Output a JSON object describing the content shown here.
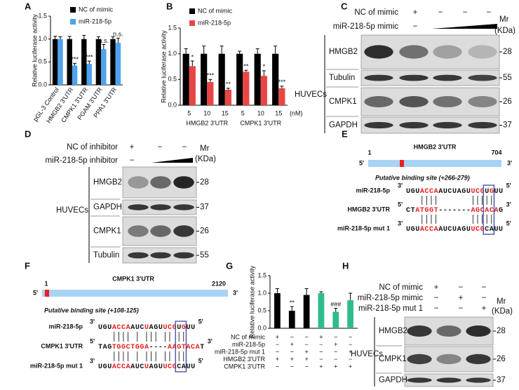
{
  "chart_data": [
    {
      "label": "A",
      "type": "bar",
      "y_label": "Relative luciferase activity",
      "categories": [
        "pGL-3 Control",
        "HMGB2 3'UTR",
        "CMPK1 3'UTR",
        "PGAM 3'UTR",
        "PPA1 3'UTR"
      ],
      "series": [
        {
          "name": "NC of mimic",
          "color": "#000000",
          "values": [
            1,
            1,
            1,
            1,
            1
          ],
          "errors": [
            0.06,
            0.06,
            0.08,
            0.05,
            0.05
          ]
        },
        {
          "name": "miR-218-5p",
          "color": "#4ea3ee",
          "values": [
            1,
            0.42,
            0.46,
            0.78,
            0.92
          ],
          "errors": [
            0.05,
            0.05,
            0.06,
            0.1,
            0.1
          ]
        }
      ],
      "annotations": [
        null,
        "***",
        "***",
        "n.s.",
        "n.s."
      ],
      "ylim": [
        0,
        1.5
      ],
      "yticks": [
        {
          "value": 0,
          "label": "0.0"
        },
        0.5,
        {
          "value": 1,
          "label": "1.0"
        },
        1.5
      ]
    },
    {
      "label": "B",
      "type": "bar",
      "y_label": "Relative luciferase activity",
      "categories": [
        "5",
        "10",
        "15",
        "5",
        "10",
        "15"
      ],
      "x_unit": "(nM)",
      "groups": [
        "HMGB2 3'UTR",
        "CMPK1 3'UTR"
      ],
      "series": [
        {
          "name": "NC of mimic",
          "color": "#000000",
          "values": [
            1,
            1,
            1,
            1,
            1,
            1
          ],
          "errors": [
            0.1,
            0.15,
            0.15,
            0.05,
            0.1,
            0.15
          ]
        },
        {
          "name": "miR-218-5p",
          "color": "#e84646",
          "values": [
            0.76,
            0.45,
            0.3,
            0.65,
            0.57,
            0.33
          ],
          "errors": [
            0.1,
            0.05,
            0.03,
            0.03,
            0.1,
            0.04
          ]
        }
      ],
      "annotations": [
        "*",
        "***",
        "**",
        "**",
        "*",
        "***"
      ],
      "ylim": [
        0,
        1.5
      ],
      "yticks": [
        {
          "value": 0,
          "label": "0.0"
        },
        0.5,
        {
          "value": 1,
          "label": "1.0"
        },
        1.5
      ]
    },
    {
      "label": "G",
      "type": "bar",
      "y_label": "Relative luciferase activity",
      "values": [
        1,
        0.5,
        0.95,
        1,
        0.47,
        0.8
      ],
      "errors": [
        0.13,
        0.12,
        0.18,
        0.04,
        0.1,
        0.2
      ],
      "colors": [
        "#000000",
        "#000000",
        "#000000",
        "#2ebd8a",
        "#2ebd8a",
        "#2ebd8a"
      ],
      "annotations": [
        null,
        "**",
        null,
        null,
        "###",
        null
      ],
      "conditions": [
        {
          "name": "NC of mimic",
          "signs": [
            "+",
            "−",
            "−",
            "+",
            "−",
            "−"
          ]
        },
        {
          "name": "miR-218-5p",
          "signs": [
            "−",
            "+",
            "−",
            "−",
            "+",
            "−"
          ]
        },
        {
          "name": "miR-218-5p mut 1",
          "signs": [
            "−",
            "−",
            "+",
            "−",
            "−",
            "+"
          ]
        },
        {
          "name": "HMGB2 3'UTR",
          "signs": [
            "+",
            "+",
            "+",
            "−",
            "−",
            "−"
          ]
        },
        {
          "name": "CMPK1 3'UTR",
          "signs": [
            "−",
            "−",
            "−",
            "+",
            "+",
            "+"
          ]
        }
      ],
      "ylim": [
        0,
        1.5
      ],
      "yticks": [
        {
          "value": 0,
          "label": "0.0"
        },
        0.5,
        {
          "value": 1,
          "label": "1.0"
        },
        1.5
      ]
    }
  ],
  "blots": [
    {
      "label": "C",
      "cell": "HUVECs",
      "mr_header": [
        "Mr",
        "(KDa)"
      ],
      "treatments": [
        {
          "name": "NC of mimic",
          "signs": [
            "+",
            "−",
            "−",
            "−"
          ]
        },
        {
          "name": "miR-218-5p mimic",
          "signs": [
            "−"
          ],
          "gradient": true
        }
      ],
      "rows": [
        {
          "protein": "HMGB2",
          "mr": 28
        },
        {
          "protein": "Tubulin",
          "mr": 55
        },
        {
          "protein": "CMPK1",
          "mr": 26
        },
        {
          "protein": "GAPDH",
          "mr": 37
        }
      ]
    },
    {
      "label": "D",
      "cell": "HUVECs",
      "mr_header": [
        "Mr",
        "(KDa)"
      ],
      "treatments": [
        {
          "name": "NC of inhibitor",
          "signs": [
            "+",
            "−",
            "−"
          ]
        },
        {
          "name": "miR-218-5p inhibitor",
          "signs": [
            "−"
          ],
          "gradient": true
        }
      ],
      "rows": [
        {
          "protein": "HMGB2",
          "mr": 28
        },
        {
          "protein": "GAPDH",
          "mr": 37
        },
        {
          "protein": "CMPK1",
          "mr": 26
        },
        {
          "protein": "Tubulin",
          "mr": 55
        }
      ]
    },
    {
      "label": "H",
      "cell": "HUVECs",
      "mr_header": [
        "Mr",
        "(KDa)"
      ],
      "treatments": [
        {
          "name": "NC of mimic",
          "signs": [
            "+",
            "−",
            "−"
          ]
        },
        {
          "name": "miR-218-5p mimic",
          "signs": [
            "−",
            "+",
            "−"
          ]
        },
        {
          "name": "miR-218-5p mut 1",
          "signs": [
            "−",
            "−",
            "+"
          ]
        }
      ],
      "rows": [
        {
          "protein": "HMGB2",
          "mr": 28
        },
        {
          "protein": "CMPK1",
          "mr": 26
        },
        {
          "protein": "GAPDH",
          "mr": 37
        }
      ]
    }
  ],
  "sequences": [
    {
      "label": "E",
      "gene": "HMGB2 3'UTR",
      "start": "1",
      "end": "704",
      "five": "5'",
      "three": "3'",
      "site": "Putative binding site (+266-279)",
      "rows": [
        {
          "name": "miR-218-5p",
          "left": "3'",
          "segments": [
            "UGU",
            "ACCA",
            "AUCUAGU",
            "UCG",
            "U",
            "G",
            "UU"
          ],
          "right": "5'"
        },
        {
          "name": "HMGB2 3'UTR",
          "left": "5'",
          "segments": [
            "CT",
            "ATGGT",
            "-------",
            "AGCACA",
            "G"
          ],
          "right": "3'"
        },
        {
          "name": "miR-218-5p mut 1",
          "left": "3'",
          "segments": [
            "UGU",
            "ACCA",
            "AUCUAGU",
            "UCG",
            "CAUU"
          ],
          "right": "5'"
        }
      ]
    },
    {
      "label": "F",
      "gene": "CMPK1 3'UTR",
      "start": "1",
      "end": "2120",
      "five": "5'",
      "three": "3'",
      "site": "Putative binding site (+108-125)",
      "rows": [
        {
          "name": "miR-218-5p",
          "left": "3'",
          "segments": [
            "UGU",
            "ACCA",
            "AUC",
            "U",
            "AGU",
            "UCG",
            "U",
            "G",
            "UU"
          ],
          "right": "5'"
        },
        {
          "name": "CMPK1 3'UTR",
          "left": "5'",
          "segments": [
            "TAG",
            "TGGCTGGA",
            "----",
            "AAGTACA",
            "T"
          ],
          "right": "3'"
        },
        {
          "name": "miR-218-5p mut 1",
          "left": "3'",
          "segments": [
            "UGU",
            "ACCA",
            "AUC",
            "U",
            "AGU",
            "UCG",
            "CAUU"
          ],
          "right": "5'"
        }
      ]
    }
  ]
}
